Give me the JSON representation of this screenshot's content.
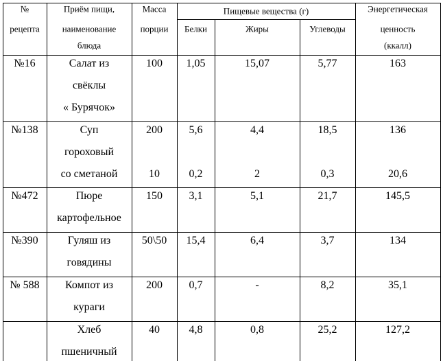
{
  "table": {
    "header": {
      "recipe_no": [
        "№",
        "рецепта"
      ],
      "dish": [
        "Приём пищи,",
        "наименование",
        "блюда"
      ],
      "mass": [
        "Масса",
        "порции"
      ],
      "nutrients": "Пищевые вещества (г)",
      "protein": "Белки",
      "fat": "Жиры",
      "carbs": "Углеводы",
      "energy": [
        "Энергетическая",
        "ценность",
        "(ккалл)"
      ]
    },
    "rows": [
      [
        [
          "№16"
        ],
        [
          "Салат  из",
          "свёклы",
          "« Бурячок»"
        ],
        [
          "100"
        ],
        [
          "1,05"
        ],
        [
          "15,07"
        ],
        [
          "5,77"
        ],
        [
          "163"
        ]
      ],
      [
        [
          "№138"
        ],
        [
          "Суп",
          "гороховый",
          "со сметаной"
        ],
        [
          "200",
          null,
          "10"
        ],
        [
          "5,6",
          null,
          "0,2"
        ],
        [
          "4,4",
          null,
          "2"
        ],
        [
          "18,5",
          null,
          "0,3"
        ],
        [
          "136",
          null,
          "20,6"
        ]
      ],
      [
        [
          "№472"
        ],
        [
          "Пюре",
          "картофельное"
        ],
        [
          "150"
        ],
        [
          "3,1"
        ],
        [
          "5,1"
        ],
        [
          "21,7"
        ],
        [
          "145,5"
        ]
      ],
      [
        [
          "№390"
        ],
        [
          "Гуляш из",
          "говядины"
        ],
        [
          "50\\50"
        ],
        [
          "15,4"
        ],
        [
          "6,4"
        ],
        [
          "3,7"
        ],
        [
          "134"
        ]
      ],
      [
        [
          "№ 588"
        ],
        [
          "Компот из",
          "кураги"
        ],
        [
          "200"
        ],
        [
          "0,7"
        ],
        [
          "-"
        ],
        [
          "8,2"
        ],
        [
          "35,1"
        ]
      ],
      [
        null,
        [
          "Хлеб",
          "пшеничный"
        ],
        [
          "40"
        ],
        [
          "4,8"
        ],
        [
          "0,8"
        ],
        [
          "25,2"
        ],
        [
          "127,2"
        ]
      ]
    ]
  }
}
